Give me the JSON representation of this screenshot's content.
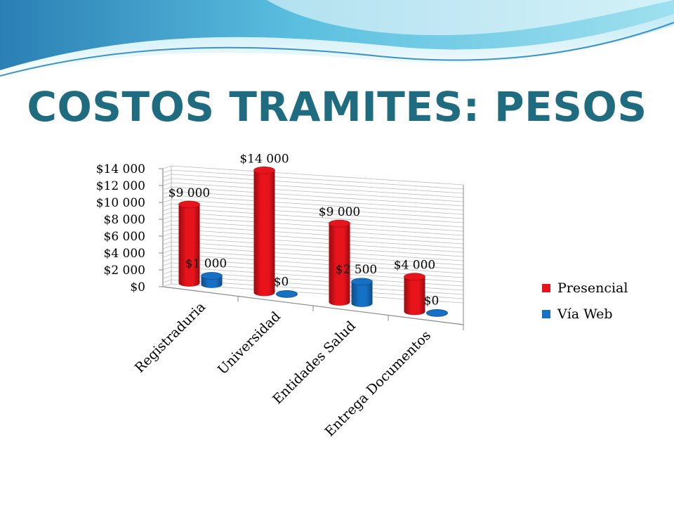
{
  "slide": {
    "title": "COSTOS TRAMITES: PESOS"
  },
  "colors": {
    "title": "#1f6c80",
    "presencial": "#e8141c",
    "via_web": "#1670c4",
    "wave_dark": "#2d86b8",
    "wave_light": "#8fd6ea"
  },
  "chart_data": {
    "type": "bar",
    "style": "3d-cylinder",
    "title": "",
    "categories": [
      "Registraduria",
      "Universidad",
      "Entidades Salud",
      "Entrega Documentos"
    ],
    "series": [
      {
        "name": "Presencial",
        "values": [
          9000,
          14000,
          9000,
          4000
        ],
        "labels": [
          "$9 000",
          "$14 000",
          "$9 000",
          "$4 000"
        ]
      },
      {
        "name": "Vía Web",
        "values": [
          1000,
          0,
          2500,
          0
        ],
        "labels": [
          "$1 000",
          "$0",
          "$2 500",
          "$0"
        ]
      }
    ],
    "ylim": [
      0,
      14000
    ],
    "yticks": [
      0,
      2000,
      4000,
      6000,
      8000,
      10000,
      12000,
      14000
    ],
    "ytick_labels": [
      "$0",
      "$2 000",
      "$4 000",
      "$6 000",
      "$8 000",
      "$10 000",
      "$12 000",
      "$14 000"
    ],
    "grid": true,
    "legend_position": "right"
  }
}
